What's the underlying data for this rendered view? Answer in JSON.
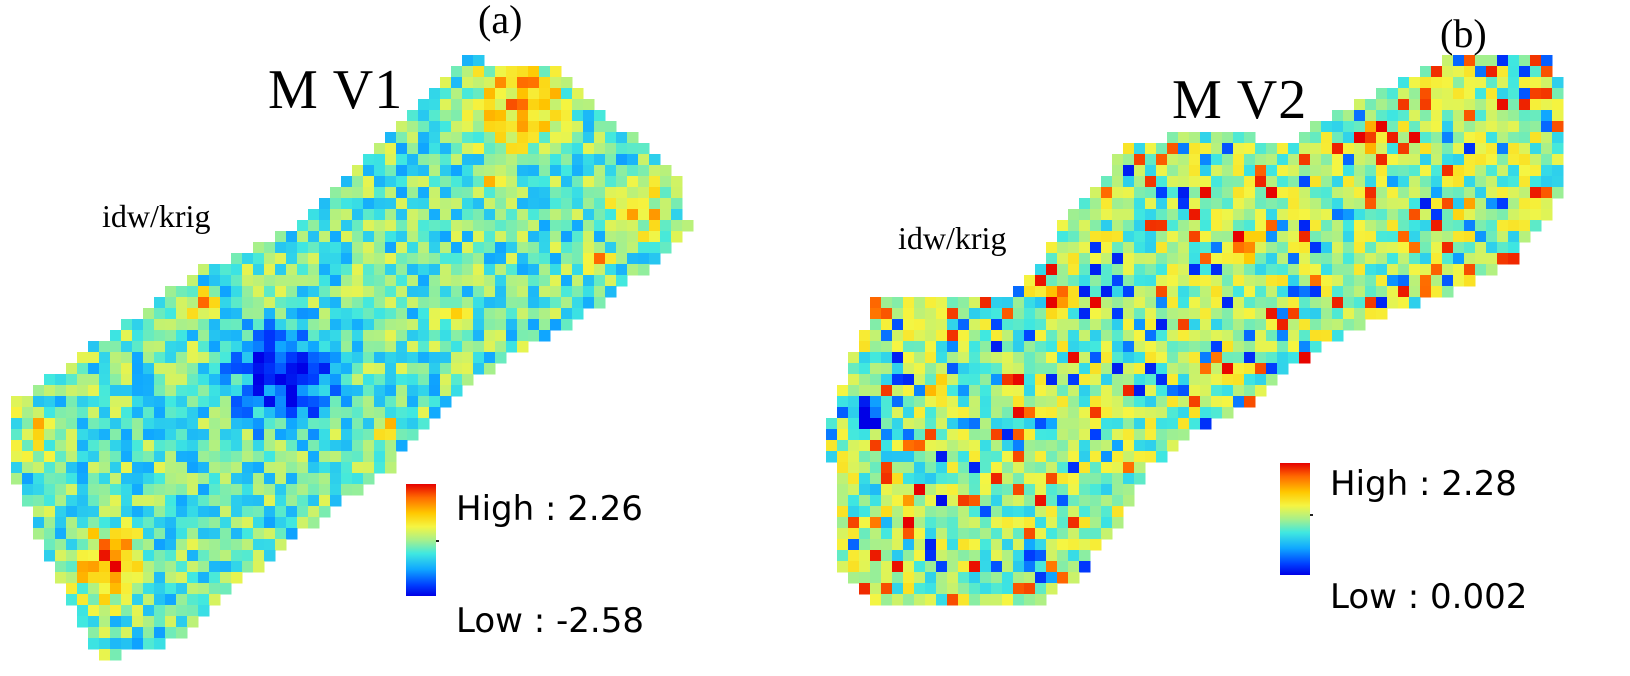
{
  "panels": [
    {
      "letter": "(a)",
      "title": "M V1",
      "method": "idw/krig",
      "legend": {
        "high": "High : 2.26",
        "low": "Low : -2.58"
      },
      "colors": {
        "high": "#e60000",
        "low": "#0000e6",
        "mid": "#a8f08a"
      }
    },
    {
      "letter": "(b)",
      "title": "M V2",
      "method": "idw/krig",
      "legend": {
        "high": "High : 2.28",
        "low": "Low : 0.002"
      },
      "colors": {
        "high": "#e60000",
        "low": "#0000e6",
        "mid": "#a8f08a"
      }
    }
  ]
}
